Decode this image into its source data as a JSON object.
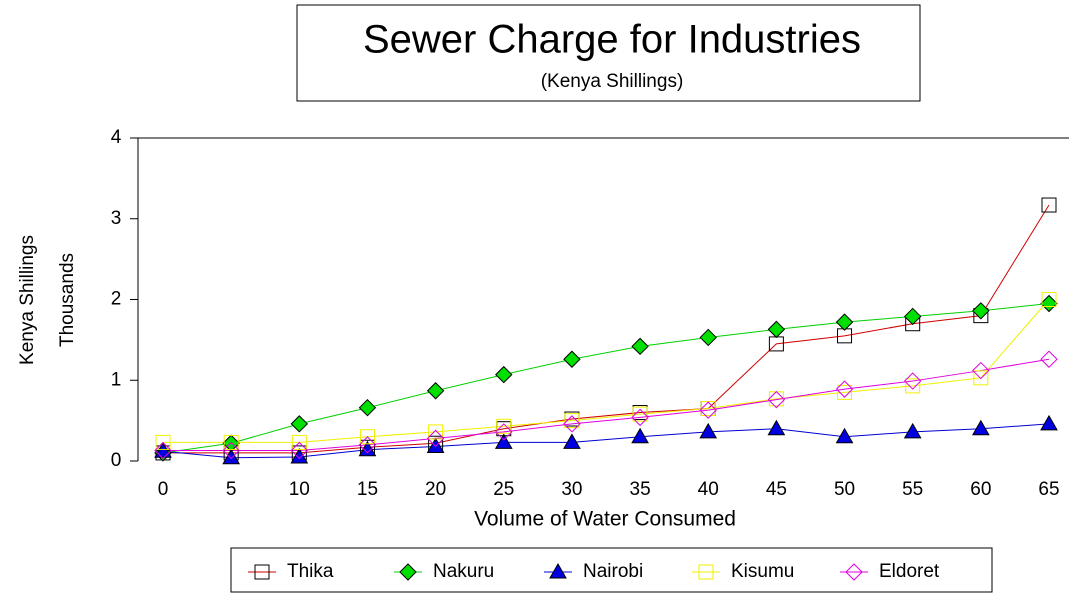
{
  "chart_data": {
    "type": "line",
    "title": "Sewer Charge for Industries",
    "subtitle": "(Kenya Shillings)",
    "x_label": "Volume of Water Consumed",
    "y_label": "Kenya Shillings",
    "y_label2": "Thousands",
    "categories": [
      "0",
      "5",
      "10",
      "15",
      "20",
      "25",
      "30",
      "35",
      "40",
      "45",
      "50",
      "55",
      "60",
      "65"
    ],
    "ylim": [
      0,
      4
    ],
    "yticks": [
      0,
      1,
      2,
      3,
      4
    ],
    "legend": "bottom",
    "series": [
      {
        "name": "Thika",
        "color": "#d00000",
        "marker": "square",
        "marker_fill": "none",
        "marker_stroke": "#000000",
        "values": [
          0.1,
          0.1,
          0.1,
          0.17,
          0.22,
          0.4,
          0.52,
          0.6,
          0.65,
          1.45,
          1.55,
          1.7,
          1.8,
          3.17
        ]
      },
      {
        "name": "Nakuru",
        "color": "#00d000",
        "marker": "diamond",
        "marker_fill": "#00e000",
        "marker_stroke": "#000000",
        "values": [
          0.1,
          0.22,
          0.46,
          0.66,
          0.87,
          1.07,
          1.26,
          1.42,
          1.53,
          1.63,
          1.72,
          1.79,
          1.86,
          1.95
        ]
      },
      {
        "name": "Nairobi",
        "color": "#0000d0",
        "marker": "triangle",
        "marker_fill": "#0000e0",
        "marker_stroke": "#000000",
        "values": [
          0.12,
          0.04,
          0.05,
          0.14,
          0.18,
          0.23,
          0.23,
          0.3,
          0.36,
          0.4,
          0.3,
          0.36,
          0.4,
          0.46
        ]
      },
      {
        "name": "Kisumu",
        "color": "#f0f000",
        "marker": "square",
        "marker_fill": "none",
        "marker_stroke": "#f0f000",
        "values": [
          0.23,
          0.23,
          0.23,
          0.3,
          0.36,
          0.43,
          0.5,
          0.58,
          0.65,
          0.77,
          0.85,
          0.93,
          1.03,
          2.0
        ]
      },
      {
        "name": "Eldoret",
        "color": "#e000e0",
        "marker": "diamond",
        "marker_fill": "none",
        "marker_stroke": "#e000e0",
        "values": [
          0.13,
          0.13,
          0.13,
          0.2,
          0.28,
          0.36,
          0.46,
          0.54,
          0.63,
          0.76,
          0.89,
          0.99,
          1.12,
          1.26
        ]
      }
    ]
  }
}
